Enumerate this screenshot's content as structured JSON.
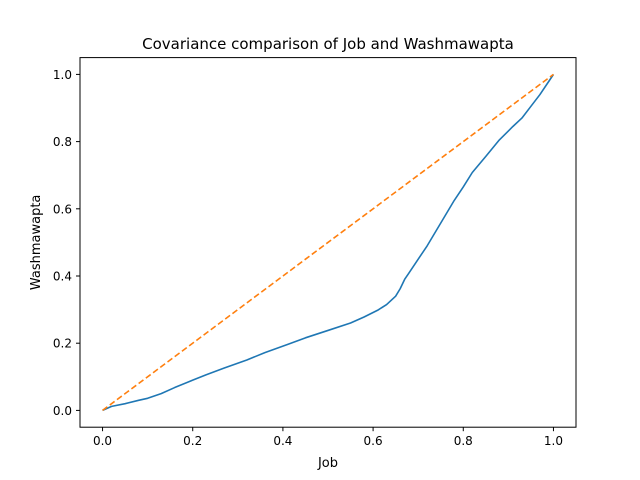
{
  "chart_data": {
    "type": "line",
    "title": "Covariance comparison of Job and Washmawapta",
    "xlabel": "Job",
    "ylabel": "Washmawapta",
    "xlim": [
      -0.05,
      1.05
    ],
    "ylim": [
      -0.05,
      1.05
    ],
    "xticks": [
      "0.0",
      "0.2",
      "0.4",
      "0.6",
      "0.8",
      "1.0"
    ],
    "yticks": [
      "0.0",
      "0.2",
      "0.4",
      "0.6",
      "0.8",
      "1.0"
    ],
    "grid": false,
    "legend": "none",
    "series": [
      {
        "style": "solid",
        "color": "#1f77b4",
        "x": [
          0.0,
          0.02,
          0.05,
          0.08,
          0.1,
          0.13,
          0.16,
          0.2,
          0.23,
          0.27,
          0.32,
          0.36,
          0.41,
          0.45,
          0.5,
          0.55,
          0.58,
          0.61,
          0.63,
          0.65,
          0.66,
          0.67,
          0.68,
          0.7,
          0.72,
          0.74,
          0.76,
          0.78,
          0.8,
          0.82,
          0.85,
          0.88,
          0.91,
          0.93,
          0.95,
          0.97,
          0.99,
          1.0
        ],
        "y": [
          0.0,
          0.012,
          0.02,
          0.03,
          0.036,
          0.05,
          0.068,
          0.09,
          0.106,
          0.126,
          0.15,
          0.172,
          0.196,
          0.216,
          0.238,
          0.26,
          0.278,
          0.298,
          0.315,
          0.34,
          0.362,
          0.39,
          0.41,
          0.45,
          0.49,
          0.535,
          0.58,
          0.625,
          0.665,
          0.708,
          0.756,
          0.805,
          0.845,
          0.87,
          0.905,
          0.94,
          0.98,
          1.0
        ]
      },
      {
        "style": "dashed",
        "color": "#ff7f0e",
        "x": [
          0.0,
          1.0
        ],
        "y": [
          0.0,
          1.0
        ]
      }
    ]
  }
}
